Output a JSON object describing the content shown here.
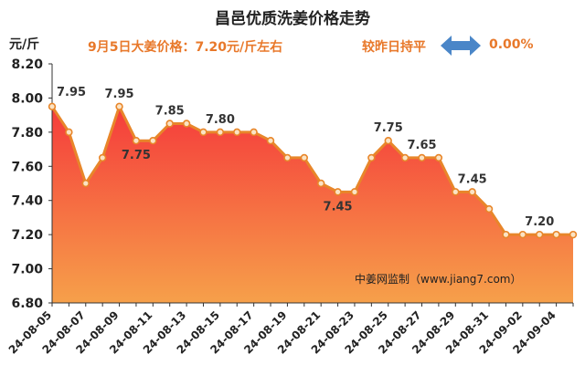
{
  "chart_data": {
    "type": "area",
    "title": "昌邑优质洗姜价格走势",
    "ylabel": "元/斤",
    "ylim": [
      6.8,
      8.2
    ],
    "yticks": [
      "8.20",
      "8.00",
      "7.80",
      "7.60",
      "7.40",
      "7.20",
      "7.00",
      "6.80"
    ],
    "x": [
      "24-08-05",
      "24-08-06",
      "24-08-07",
      "24-08-08",
      "24-08-09",
      "24-08-10",
      "24-08-11",
      "24-08-12",
      "24-08-13",
      "24-08-14",
      "24-08-15",
      "24-08-16",
      "24-08-17",
      "24-08-18",
      "24-08-19",
      "24-08-20",
      "24-08-21",
      "24-08-22",
      "24-08-23",
      "24-08-24",
      "24-08-25",
      "24-08-26",
      "24-08-27",
      "24-08-28",
      "24-08-29",
      "24-08-30",
      "24-08-31",
      "24-09-01",
      "24-09-02",
      "24-09-03",
      "24-09-04",
      "24-09-05"
    ],
    "xtick_labels": [
      "24-08-05",
      "24-08-07",
      "24-08-09",
      "24-08-11",
      "24-08-13",
      "24-08-15",
      "24-08-17",
      "24-08-19",
      "24-08-21",
      "24-08-23",
      "24-08-25",
      "24-08-27",
      "24-08-29",
      "24-08-31",
      "24-09-02",
      "24-09-04"
    ],
    "values": [
      7.95,
      7.8,
      7.5,
      7.65,
      7.95,
      7.75,
      7.75,
      7.85,
      7.85,
      7.8,
      7.8,
      7.8,
      7.8,
      7.75,
      7.65,
      7.65,
      7.5,
      7.45,
      7.45,
      7.65,
      7.75,
      7.65,
      7.65,
      7.65,
      7.45,
      7.45,
      7.35,
      7.2,
      7.2,
      7.2,
      7.2,
      7.2
    ],
    "data_labels": [
      {
        "index": 0,
        "text": "7.95",
        "position": "above-right"
      },
      {
        "index": 4,
        "text": "7.95",
        "position": "above"
      },
      {
        "index": 5,
        "text": "7.75",
        "position": "below"
      },
      {
        "index": 7,
        "text": "7.85",
        "position": "above"
      },
      {
        "index": 10,
        "text": "7.80",
        "position": "above"
      },
      {
        "index": 17,
        "text": "7.45",
        "position": "below"
      },
      {
        "index": 20,
        "text": "7.75",
        "position": "above"
      },
      {
        "index": 22,
        "text": "7.65",
        "position": "above"
      },
      {
        "index": 25,
        "text": "7.45",
        "position": "above"
      },
      {
        "index": 29,
        "text": "7.20",
        "position": "above"
      }
    ],
    "colors": {
      "line": "#e8862a",
      "marker_fill": "#fbe3c4",
      "area_top": "#f53b3b",
      "area_bottom": "#f6a04a",
      "axis": "#333333"
    }
  },
  "headline": "9月5日大姜价格：7.20元/斤左右",
  "trend": {
    "label": "较昨日持平",
    "icon": "left-right-arrow-icon",
    "icon_color": "#4a86c8",
    "value": "0.00%"
  },
  "source": "中姜网监制（www.jiang7.com）"
}
